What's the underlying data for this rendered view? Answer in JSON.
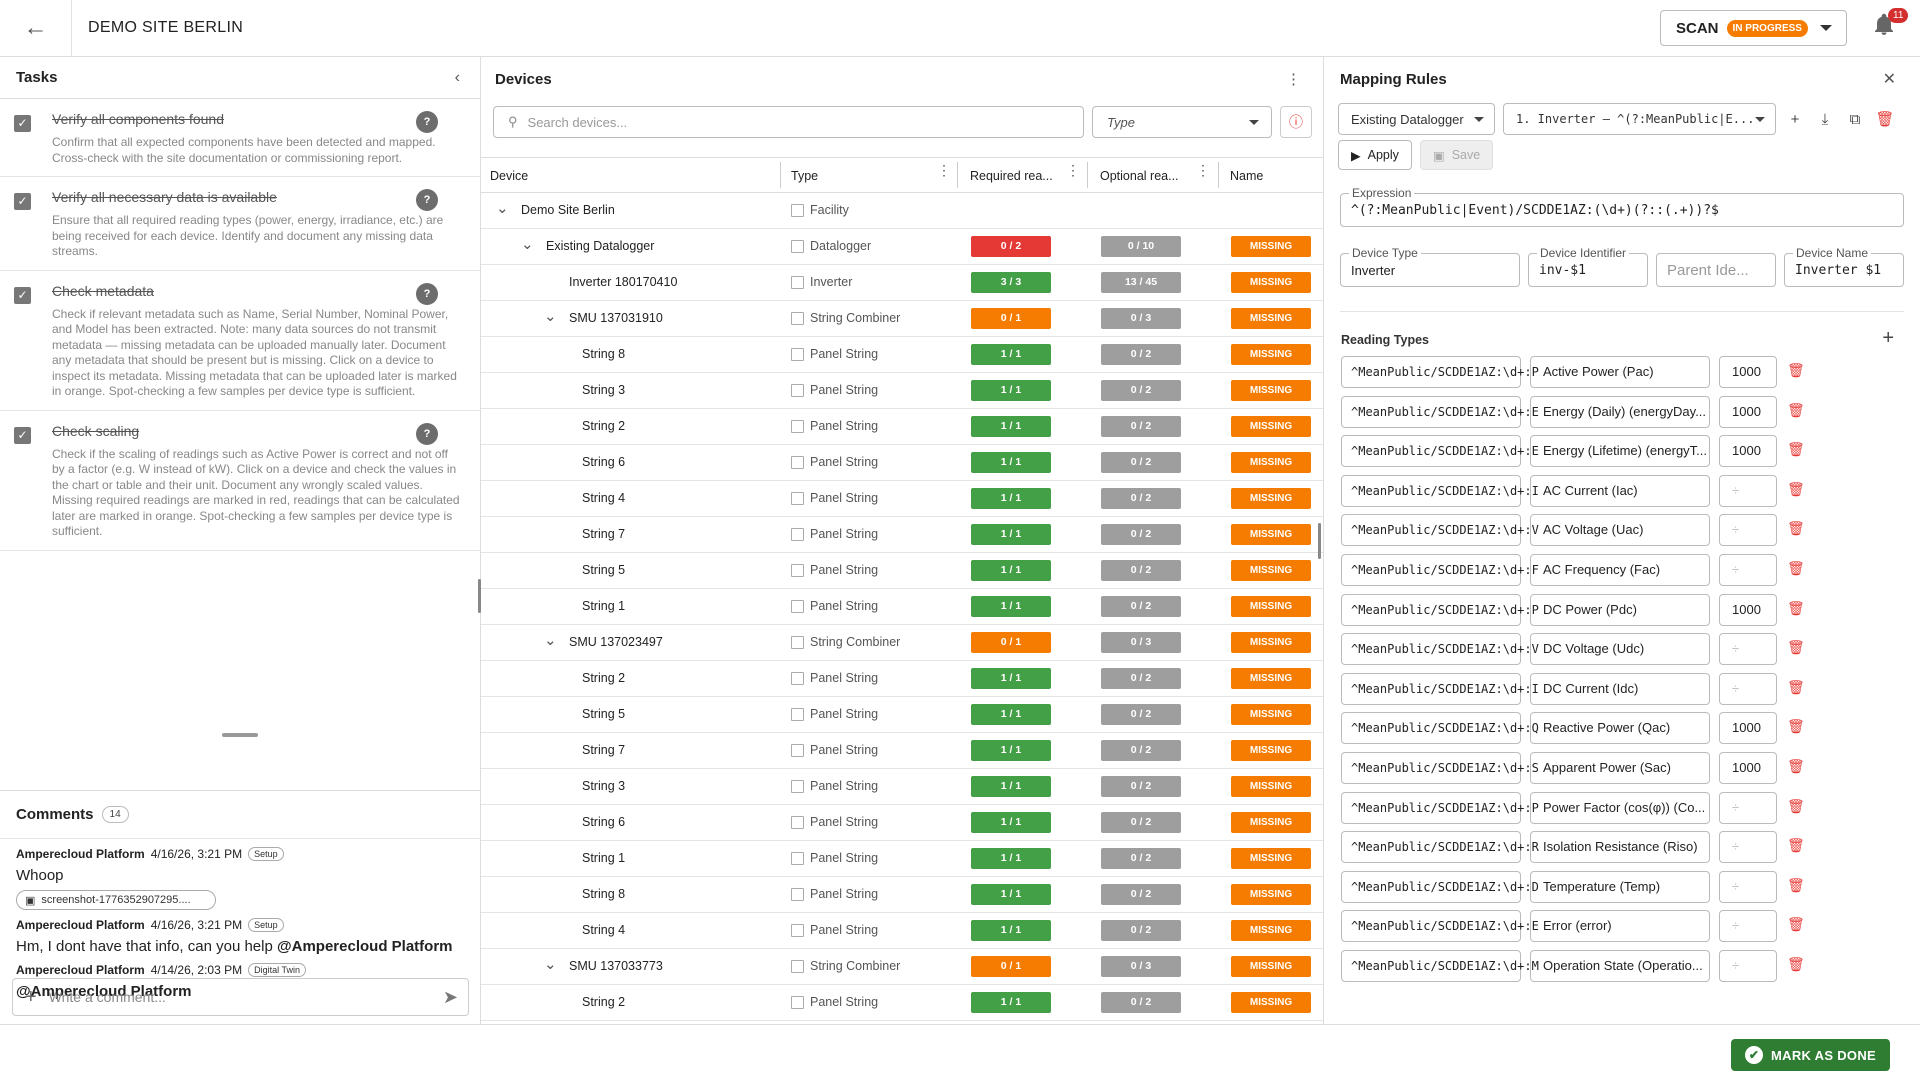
{
  "header": {
    "back_icon": "arrow-left-icon",
    "site_name": "DEMO SITE BERLIN",
    "scan_label": "SCAN",
    "scan_status": "IN PROGRESS",
    "notifications": "11"
  },
  "tasks": {
    "title": "Tasks",
    "items": [
      {
        "title": "Verify all components found",
        "desc": "Confirm that all expected components have been detected and mapped. Cross-check with the site documentation or commissioning report."
      },
      {
        "title": "Verify all necessary data is available",
        "desc": "Ensure that all required reading types (power, energy, irradiance, etc.) are being received for each device. Identify and document any missing data streams."
      },
      {
        "title": "Check metadata",
        "desc": "Check if relevant metadata such as Name, Serial Number, Nominal Power, and Model has been extracted. Note: many data sources do not transmit metadata — missing metadata can be uploaded manually later. Document any metadata that should be present but is missing. Click on a device to inspect its metadata. Missing metadata that can be uploaded later is marked in orange. Spot-checking a few samples per device type is sufficient."
      },
      {
        "title": "Check scaling",
        "desc": "Check if the scaling of readings such as Active Power is correct and not off by a factor (e.g. W instead of kW). Click on a device and check the values in the chart or table and their unit. Document any wrongly scaled values. Missing required readings are marked in red, readings that can be calculated later are marked in orange. Spot-checking a few samples per device type is sufficient."
      }
    ]
  },
  "comments": {
    "title": "Comments",
    "count": "14",
    "items": [
      {
        "author": "Amperecloud Platform",
        "time": "4/16/26, 3:21 PM",
        "tag": "Setup",
        "text": "Whoop",
        "attachment": "screenshot-1776352907295...."
      },
      {
        "author": "Amperecloud Platform",
        "time": "4/16/26, 3:21 PM",
        "tag": "Setup",
        "text": "Hm, I dont have that info, can you help",
        "mention": "@Amperecloud Platform"
      },
      {
        "author": "Amperecloud Platform",
        "time": "4/14/26, 2:03 PM",
        "tag": "Digital Twin",
        "text": "",
        "mention": "@Amperecloud Platform"
      }
    ],
    "placeholder": "Write a comment..."
  },
  "devices": {
    "title": "Devices",
    "search_placeholder": "Search devices...",
    "type_placeholder": "Type",
    "columns": [
      "Device",
      "Type",
      "Required rea...",
      "Optional rea...",
      "Name"
    ],
    "rows": [
      {
        "name": "Demo Site Berlin",
        "level": 0,
        "expand": true,
        "type": "Facility"
      },
      {
        "name": "Existing Datalogger",
        "level": 1,
        "expand": true,
        "type": "Datalogger",
        "req": "0 / 2",
        "req_color": "red",
        "opt": "0 / 10",
        "name_status": "MISSING"
      },
      {
        "name": "Inverter 180170410",
        "level": 2,
        "expand": false,
        "type": "Inverter",
        "req": "3 / 3",
        "req_color": "green",
        "opt": "13 / 45",
        "name_status": "MISSING"
      },
      {
        "name": "SMU 137031910",
        "level": 2,
        "expand": true,
        "type": "String Combiner",
        "req": "0 / 1",
        "req_color": "orange",
        "opt": "0 / 3",
        "name_status": "MISSING"
      },
      {
        "name": "String 8",
        "level": 3,
        "type": "Panel String",
        "req": "1 / 1",
        "req_color": "green",
        "opt": "0 / 2",
        "name_status": "MISSING"
      },
      {
        "name": "String 3",
        "level": 3,
        "type": "Panel String",
        "req": "1 / 1",
        "req_color": "green",
        "opt": "0 / 2",
        "name_status": "MISSING"
      },
      {
        "name": "String 2",
        "level": 3,
        "type": "Panel String",
        "req": "1 / 1",
        "req_color": "green",
        "opt": "0 / 2",
        "name_status": "MISSING"
      },
      {
        "name": "String 6",
        "level": 3,
        "type": "Panel String",
        "req": "1 / 1",
        "req_color": "green",
        "opt": "0 / 2",
        "name_status": "MISSING"
      },
      {
        "name": "String 4",
        "level": 3,
        "type": "Panel String",
        "req": "1 / 1",
        "req_color": "green",
        "opt": "0 / 2",
        "name_status": "MISSING"
      },
      {
        "name": "String 7",
        "level": 3,
        "type": "Panel String",
        "req": "1 / 1",
        "req_color": "green",
        "opt": "0 / 2",
        "name_status": "MISSING"
      },
      {
        "name": "String 5",
        "level": 3,
        "type": "Panel String",
        "req": "1 / 1",
        "req_color": "green",
        "opt": "0 / 2",
        "name_status": "MISSING"
      },
      {
        "name": "String 1",
        "level": 3,
        "type": "Panel String",
        "req": "1 / 1",
        "req_color": "green",
        "opt": "0 / 2",
        "name_status": "MISSING"
      },
      {
        "name": "SMU 137023497",
        "level": 2,
        "expand": true,
        "type": "String Combiner",
        "req": "0 / 1",
        "req_color": "orange",
        "opt": "0 / 3",
        "name_status": "MISSING"
      },
      {
        "name": "String 2",
        "level": 3,
        "type": "Panel String",
        "req": "1 / 1",
        "req_color": "green",
        "opt": "0 / 2",
        "name_status": "MISSING"
      },
      {
        "name": "String 5",
        "level": 3,
        "type": "Panel String",
        "req": "1 / 1",
        "req_color": "green",
        "opt": "0 / 2",
        "name_status": "MISSING"
      },
      {
        "name": "String 7",
        "level": 3,
        "type": "Panel String",
        "req": "1 / 1",
        "req_color": "green",
        "opt": "0 / 2",
        "name_status": "MISSING"
      },
      {
        "name": "String 3",
        "level": 3,
        "type": "Panel String",
        "req": "1 / 1",
        "req_color": "green",
        "opt": "0 / 2",
        "name_status": "MISSING"
      },
      {
        "name": "String 6",
        "level": 3,
        "type": "Panel String",
        "req": "1 / 1",
        "req_color": "green",
        "opt": "0 / 2",
        "name_status": "MISSING"
      },
      {
        "name": "String 1",
        "level": 3,
        "type": "Panel String",
        "req": "1 / 1",
        "req_color": "green",
        "opt": "0 / 2",
        "name_status": "MISSING"
      },
      {
        "name": "String 8",
        "level": 3,
        "type": "Panel String",
        "req": "1 / 1",
        "req_color": "green",
        "opt": "0 / 2",
        "name_status": "MISSING"
      },
      {
        "name": "String 4",
        "level": 3,
        "type": "Panel String",
        "req": "1 / 1",
        "req_color": "green",
        "opt": "0 / 2",
        "name_status": "MISSING"
      },
      {
        "name": "SMU 137033773",
        "level": 2,
        "expand": true,
        "type": "String Combiner",
        "req": "0 / 1",
        "req_color": "orange",
        "opt": "0 / 3",
        "name_status": "MISSING"
      },
      {
        "name": "String 2",
        "level": 3,
        "type": "Panel String",
        "req": "1 / 1",
        "req_color": "green",
        "opt": "0 / 2",
        "name_status": "MISSING"
      }
    ]
  },
  "mapping": {
    "title": "Mapping Rules",
    "source": "Existing Datalogger",
    "rule": "1. Inverter — ^(?:MeanPublic|E...",
    "apply": "Apply",
    "save": "Save",
    "expression_label": "Expression",
    "expression": "^(?:MeanPublic|Event)/SCDDE1AZ:(\\d+)(?::(.+))?$",
    "device_type_label": "Device Type",
    "device_type": "Inverter",
    "device_id_label": "Device Identifier",
    "device_id": "inv-$1",
    "parent_placeholder": "Parent Ide...",
    "device_name_label": "Device Name",
    "device_name": "Inverter $1",
    "reading_types_title": "Reading Types",
    "reading_types": [
      {
        "pattern": "^MeanPublic/SCDDE1AZ:\\d+:P",
        "name": "Active Power (Pac)",
        "factor": "1000"
      },
      {
        "pattern": "^MeanPublic/SCDDE1AZ:\\d+:E",
        "name": "Energy (Daily) (energyDay...",
        "factor": "1000"
      },
      {
        "pattern": "^MeanPublic/SCDDE1AZ:\\d+:E",
        "name": "Energy (Lifetime) (energyT...",
        "factor": "1000"
      },
      {
        "pattern": "^MeanPublic/SCDDE1AZ:\\d+:I",
        "name": "AC Current (Iac)",
        "factor": ""
      },
      {
        "pattern": "^MeanPublic/SCDDE1AZ:\\d+:V",
        "name": "AC Voltage (Uac)",
        "factor": ""
      },
      {
        "pattern": "^MeanPublic/SCDDE1AZ:\\d+:F",
        "name": "AC Frequency (Fac)",
        "factor": ""
      },
      {
        "pattern": "^MeanPublic/SCDDE1AZ:\\d+:P",
        "name": "DC Power (Pdc)",
        "factor": "1000"
      },
      {
        "pattern": "^MeanPublic/SCDDE1AZ:\\d+:V",
        "name": "DC Voltage (Udc)",
        "factor": ""
      },
      {
        "pattern": "^MeanPublic/SCDDE1AZ:\\d+:I",
        "name": "DC Current (Idc)",
        "factor": ""
      },
      {
        "pattern": "^MeanPublic/SCDDE1AZ:\\d+:Q",
        "name": "Reactive Power (Qac)",
        "factor": "1000"
      },
      {
        "pattern": "^MeanPublic/SCDDE1AZ:\\d+:S",
        "name": "Apparent Power (Sac)",
        "factor": "1000"
      },
      {
        "pattern": "^MeanPublic/SCDDE1AZ:\\d+:P",
        "name": "Power Factor (cos(φ)) (Co...",
        "factor": ""
      },
      {
        "pattern": "^MeanPublic/SCDDE1AZ:\\d+:R",
        "name": "Isolation Resistance (Riso)",
        "factor": ""
      },
      {
        "pattern": "^MeanPublic/SCDDE1AZ:\\d+:D",
        "name": "Temperature (Temp)",
        "factor": ""
      },
      {
        "pattern": "^MeanPublic/SCDDE1AZ:\\d+:E",
        "name": "Error (error)",
        "factor": ""
      },
      {
        "pattern": "^MeanPublic/SCDDE1AZ:\\d+:M",
        "name": "Operation State (Operatio...",
        "factor": ""
      }
    ],
    "empty_factor": "÷"
  },
  "footer": {
    "done_label": "MARK AS DONE"
  },
  "colors": {
    "red": "#e53935",
    "green": "#43a047",
    "orange": "#f57c00",
    "grey": "#9e9e9e",
    "done": "#2e7d32"
  }
}
